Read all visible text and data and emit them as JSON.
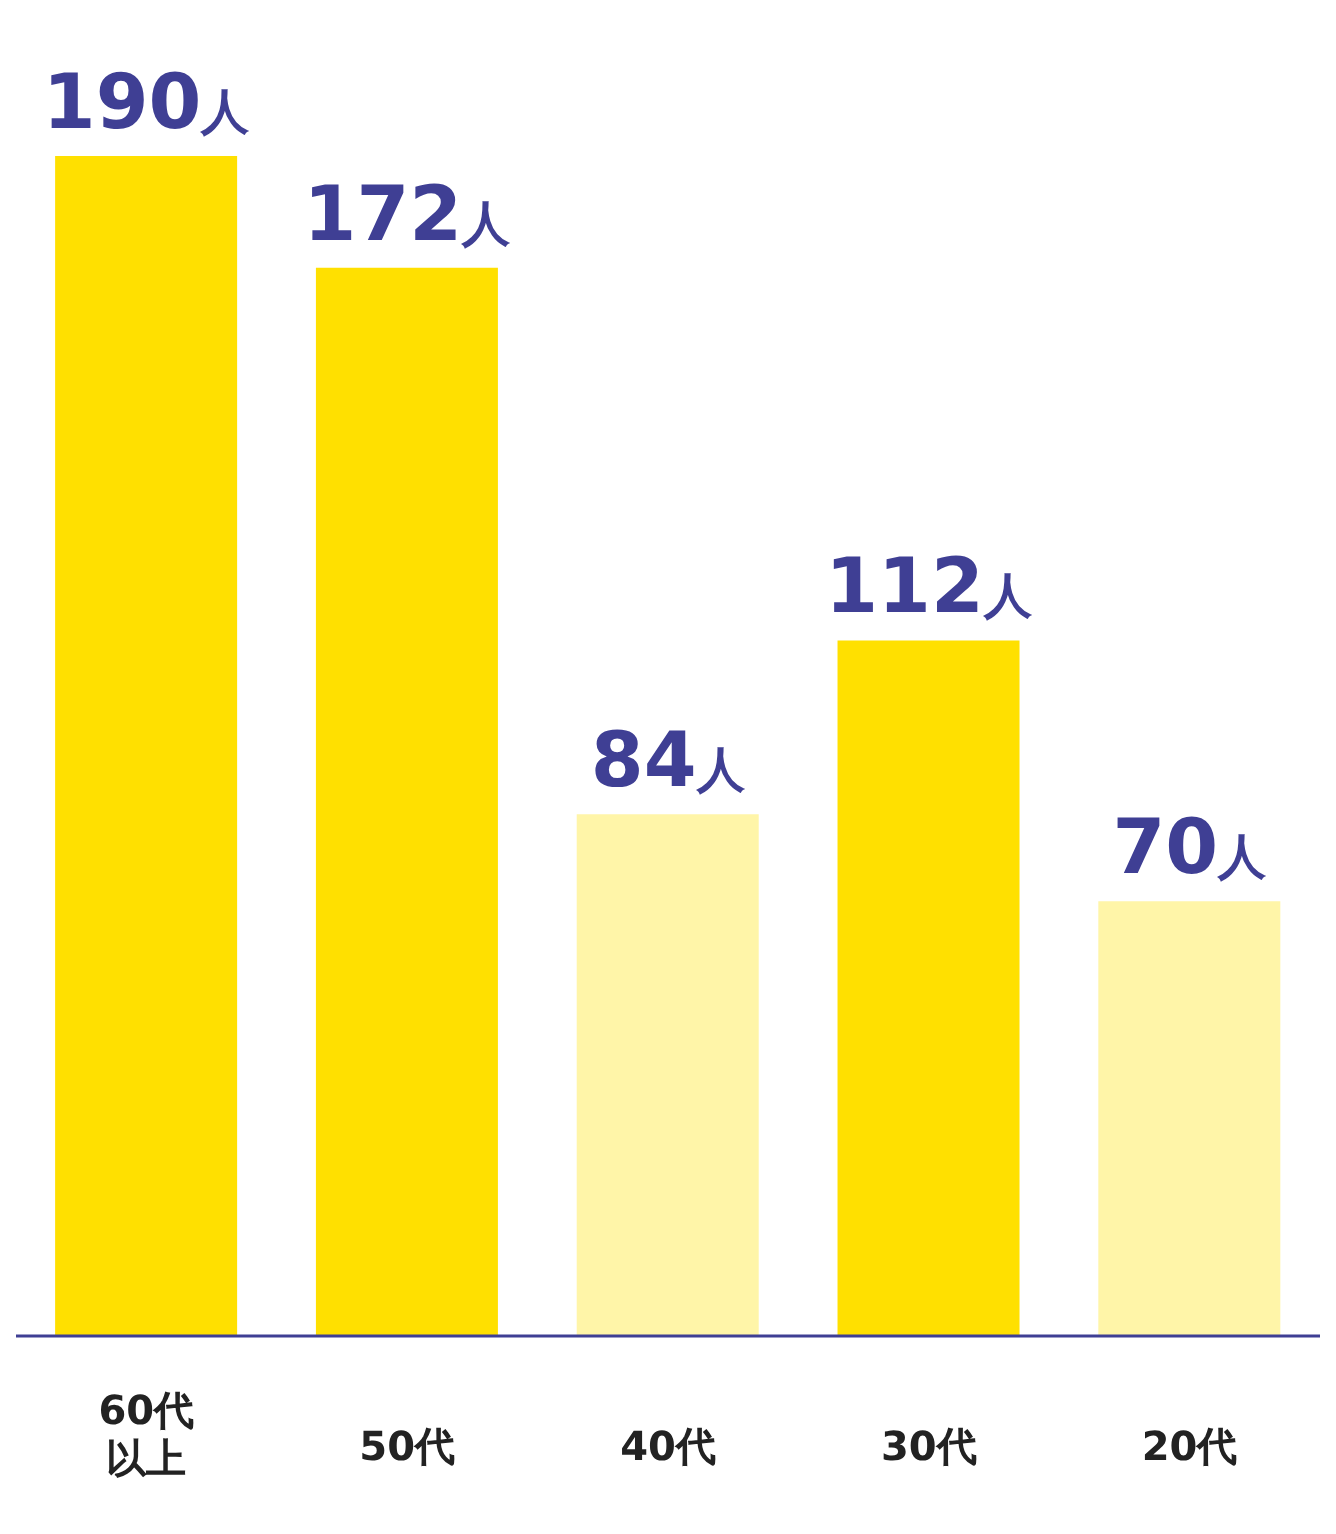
{
  "chart_data": {
    "type": "bar",
    "categories": [
      "60代以上",
      "50代",
      "40代",
      "30代",
      "20代"
    ],
    "values": [
      190,
      172,
      84,
      112,
      70
    ],
    "colors": [
      "#ffe000",
      "#ffe000",
      "#fff5a8",
      "#ffe000",
      "#fff5a8"
    ],
    "value_labels": [
      "190人",
      "172人",
      "84人",
      "112人",
      "70人"
    ],
    "tick_labels": "x",
    "grid": false,
    "legend": false
  }
}
